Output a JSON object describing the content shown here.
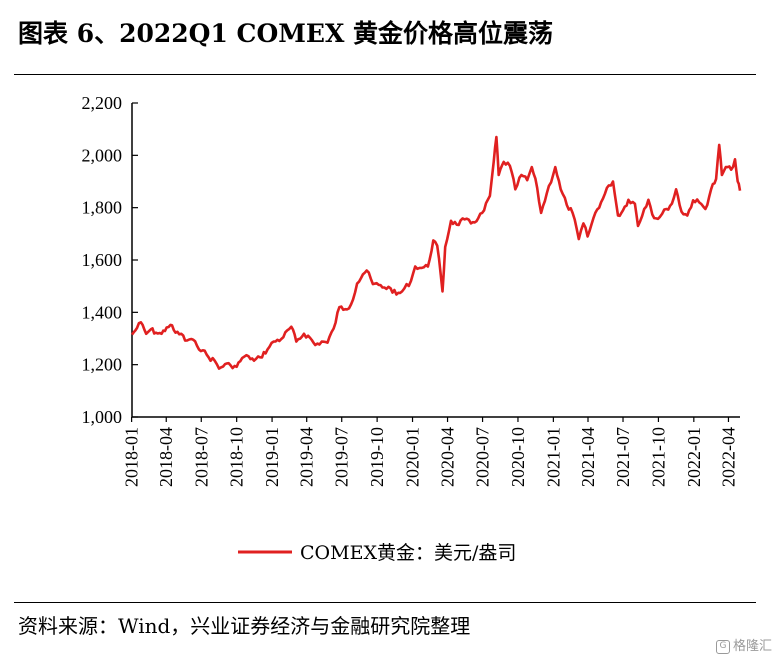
{
  "title": "图表 6、2022Q1 COMEX 黄金价格高位震荡",
  "source": "资料来源：Wind，兴业证券经济与金融研究院整理",
  "watermark": "格隆汇",
  "watermark_icon": "G",
  "colors": {
    "series": "#e02020",
    "axis": "#000000"
  },
  "chart_data": {
    "type": "line",
    "title": "图表 6、2022Q1 COMEX 黄金价格高位震荡",
    "xlabel": "",
    "ylabel": "",
    "x_range": [
      "2018-01-02",
      "2022-05-01"
    ],
    "ylim": [
      1000,
      2200
    ],
    "y_ticks": [
      1000,
      1200,
      1400,
      1600,
      1800,
      2000,
      2200
    ],
    "y_tick_labels": [
      "1,000",
      "1,200",
      "1,400",
      "1,600",
      "1,800",
      "2,000",
      "2,200"
    ],
    "x_tick_labels": [
      "2018-01",
      "2018-04",
      "2018-07",
      "2018-10",
      "2019-01",
      "2019-04",
      "2019-07",
      "2019-10",
      "2020-01",
      "2020-04",
      "2020-07",
      "2020-10",
      "2021-01",
      "2021-04",
      "2021-07",
      "2021-10",
      "2022-01",
      "2022-04"
    ],
    "grid": false,
    "legend_position": "bottom-center",
    "series": [
      {
        "name": "COMEX黄金：美元/盎司",
        "color": "#e02020",
        "points": [
          [
            "2018-01-02",
            1315
          ],
          [
            "2018-01-15",
            1340
          ],
          [
            "2018-01-25",
            1362
          ],
          [
            "2018-02-08",
            1318
          ],
          [
            "2018-02-20",
            1335
          ],
          [
            "2018-03-05",
            1322
          ],
          [
            "2018-03-20",
            1318
          ],
          [
            "2018-04-02",
            1342
          ],
          [
            "2018-04-12",
            1352
          ],
          [
            "2018-04-25",
            1322
          ],
          [
            "2018-05-10",
            1318
          ],
          [
            "2018-05-20",
            1292
          ],
          [
            "2018-06-05",
            1298
          ],
          [
            "2018-06-20",
            1272
          ],
          [
            "2018-07-05",
            1255
          ],
          [
            "2018-07-20",
            1228
          ],
          [
            "2018-08-05",
            1215
          ],
          [
            "2018-08-16",
            1185
          ],
          [
            "2018-09-01",
            1202
          ],
          [
            "2018-09-15",
            1198
          ],
          [
            "2018-10-01",
            1192
          ],
          [
            "2018-10-15",
            1225
          ],
          [
            "2018-11-01",
            1232
          ],
          [
            "2018-11-15",
            1215
          ],
          [
            "2018-12-01",
            1228
          ],
          [
            "2018-12-20",
            1258
          ],
          [
            "2019-01-05",
            1288
          ],
          [
            "2019-01-25",
            1298
          ],
          [
            "2019-02-20",
            1345
          ],
          [
            "2019-03-05",
            1288
          ],
          [
            "2019-03-25",
            1318
          ],
          [
            "2019-04-10",
            1302
          ],
          [
            "2019-04-23",
            1275
          ],
          [
            "2019-05-10",
            1288
          ],
          [
            "2019-05-25",
            1284
          ],
          [
            "2019-06-10",
            1338
          ],
          [
            "2019-06-25",
            1420
          ],
          [
            "2019-07-10",
            1412
          ],
          [
            "2019-07-25",
            1430
          ],
          [
            "2019-08-10",
            1510
          ],
          [
            "2019-08-25",
            1545
          ],
          [
            "2019-09-04",
            1560
          ],
          [
            "2019-09-20",
            1508
          ],
          [
            "2019-10-05",
            1505
          ],
          [
            "2019-10-20",
            1495
          ],
          [
            "2019-11-05",
            1492
          ],
          [
            "2019-11-20",
            1468
          ],
          [
            "2019-12-05",
            1480
          ],
          [
            "2019-12-28",
            1520
          ],
          [
            "2020-01-08",
            1575
          ],
          [
            "2020-01-25",
            1570
          ],
          [
            "2020-02-10",
            1575
          ],
          [
            "2020-02-24",
            1675
          ],
          [
            "2020-03-05",
            1655
          ],
          [
            "2020-03-19",
            1480
          ],
          [
            "2020-03-26",
            1650
          ],
          [
            "2020-04-10",
            1750
          ],
          [
            "2020-04-25",
            1735
          ],
          [
            "2020-05-15",
            1755
          ],
          [
            "2020-06-01",
            1740
          ],
          [
            "2020-06-20",
            1760
          ],
          [
            "2020-07-05",
            1790
          ],
          [
            "2020-07-20",
            1845
          ],
          [
            "2020-07-30",
            1975
          ],
          [
            "2020-08-06",
            2070
          ],
          [
            "2020-08-12",
            1925
          ],
          [
            "2020-08-25",
            1975
          ],
          [
            "2020-09-10",
            1960
          ],
          [
            "2020-09-24",
            1870
          ],
          [
            "2020-10-10",
            1925
          ],
          [
            "2020-10-25",
            1905
          ],
          [
            "2020-11-06",
            1955
          ],
          [
            "2020-11-20",
            1875
          ],
          [
            "2020-11-30",
            1780
          ],
          [
            "2020-12-15",
            1855
          ],
          [
            "2021-01-06",
            1955
          ],
          [
            "2021-01-20",
            1870
          ],
          [
            "2021-02-05",
            1810
          ],
          [
            "2021-02-20",
            1780
          ],
          [
            "2021-03-08",
            1680
          ],
          [
            "2021-03-20",
            1740
          ],
          [
            "2021-03-31",
            1690
          ],
          [
            "2021-04-20",
            1780
          ],
          [
            "2021-05-10",
            1835
          ],
          [
            "2021-05-25",
            1885
          ],
          [
            "2021-06-05",
            1900
          ],
          [
            "2021-06-18",
            1770
          ],
          [
            "2021-07-01",
            1790
          ],
          [
            "2021-07-15",
            1830
          ],
          [
            "2021-08-01",
            1815
          ],
          [
            "2021-08-09",
            1730
          ],
          [
            "2021-08-25",
            1795
          ],
          [
            "2021-09-05",
            1830
          ],
          [
            "2021-09-20",
            1760
          ],
          [
            "2021-10-05",
            1765
          ],
          [
            "2021-10-22",
            1795
          ],
          [
            "2021-11-05",
            1815
          ],
          [
            "2021-11-16",
            1870
          ],
          [
            "2021-11-30",
            1785
          ],
          [
            "2021-12-15",
            1770
          ],
          [
            "2021-12-30",
            1828
          ],
          [
            "2022-01-15",
            1820
          ],
          [
            "2022-01-31",
            1795
          ],
          [
            "2022-02-15",
            1870
          ],
          [
            "2022-02-28",
            1910
          ],
          [
            "2022-03-08",
            2040
          ],
          [
            "2022-03-15",
            1925
          ],
          [
            "2022-03-25",
            1955
          ],
          [
            "2022-04-08",
            1945
          ],
          [
            "2022-04-18",
            1985
          ],
          [
            "2022-04-25",
            1900
          ],
          [
            "2022-05-01",
            1865
          ]
        ]
      }
    ]
  }
}
